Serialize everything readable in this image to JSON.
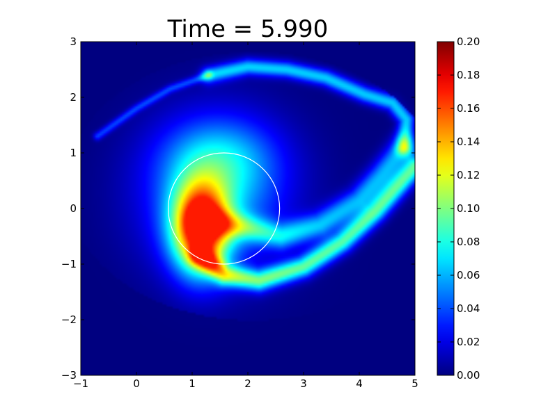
{
  "chart_data": {
    "type": "heatmap",
    "title": "Time = 5.990",
    "xlim": [
      -1,
      5
    ],
    "ylim": [
      -3,
      3
    ],
    "x_ticks": [
      "−1",
      "0",
      "1",
      "2",
      "3",
      "4",
      "5"
    ],
    "y_ticks": [
      "−3",
      "−2",
      "−1",
      "0",
      "1",
      "2",
      "3"
    ],
    "x_tick_values": [
      -1,
      0,
      1,
      2,
      3,
      4,
      5
    ],
    "y_tick_values": [
      -3,
      -2,
      -1,
      0,
      1,
      2,
      3
    ],
    "colorbar": {
      "range": [
        0,
        0.2
      ],
      "tick_values": [
        0.0,
        0.02,
        0.04,
        0.06,
        0.08,
        0.1,
        0.12,
        0.14,
        0.16,
        0.18,
        0.2
      ],
      "tick_labels": [
        "0.00",
        "0.02",
        "0.04",
        "0.06",
        "0.08",
        "0.10",
        "0.12",
        "0.14",
        "0.16",
        "0.18",
        "0.20"
      ],
      "colormap": "jet"
    },
    "overlay_circle": {
      "center": [
        1.57,
        0
      ],
      "radius": 1.0,
      "color": "#ffffff"
    },
    "field_peak_value": 0.17,
    "background_value": 0.0,
    "grid": false
  }
}
